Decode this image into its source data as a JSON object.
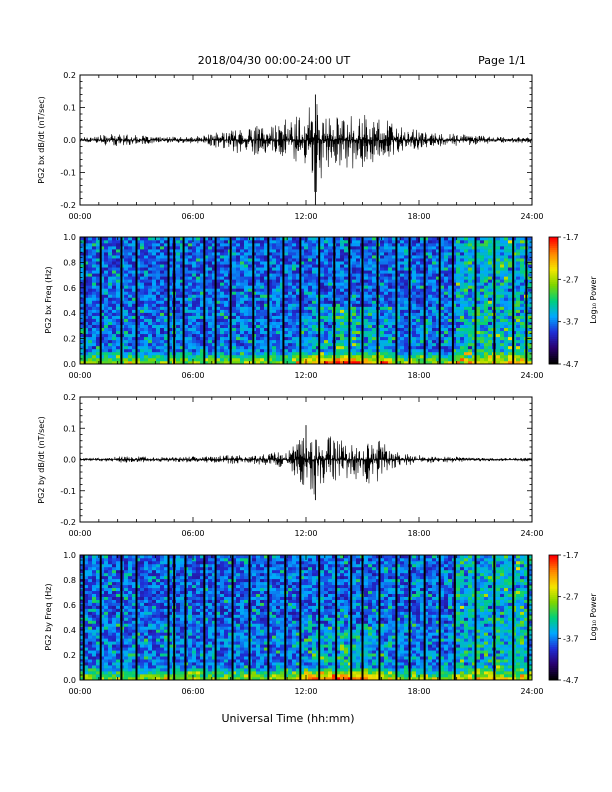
{
  "header": {
    "title": "2018/04/30  00:00-24:00 UT",
    "page": "Page 1/1"
  },
  "xaxis": {
    "label": "Universal Time (hh:mm)",
    "range_hours": [
      0,
      24
    ],
    "tick_hours": [
      0,
      6,
      12,
      18,
      24
    ],
    "tick_labels": [
      "00:00",
      "06:00",
      "12:00",
      "18:00",
      "24:00"
    ]
  },
  "colors": {
    "trace": "#000000",
    "background": "#ffffff",
    "colorbar": [
      "#000000",
      "#2a0070",
      "#1f2fd6",
      "#00a8ff",
      "#00d07a",
      "#7ed600",
      "#f4e600",
      "#ff8a00",
      "#ff0000"
    ]
  },
  "chart_data": [
    {
      "type": "line",
      "ylabel": "PG2 bx dB/dt (nT/sec)",
      "ylim": [
        -0.2,
        0.2
      ],
      "yticks": [
        -0.2,
        -0.1,
        0.0,
        0.1,
        0.2
      ],
      "ytick_labels": [
        "-0.2",
        "-0.1",
        "0.0",
        "0.1",
        "0.2"
      ],
      "x": [
        0,
        1,
        2,
        3,
        4,
        5,
        6,
        7,
        8,
        9,
        10,
        11,
        12,
        12.5,
        13,
        13.5,
        14,
        15,
        16,
        17,
        18,
        19,
        20,
        21,
        22,
        23,
        24
      ],
      "series": [
        {
          "max": [
            0.01,
            0.015,
            0.02,
            0.015,
            0.01,
            0.01,
            0.01,
            0.02,
            0.035,
            0.05,
            0.04,
            0.07,
            0.09,
            0.14,
            0.08,
            0.07,
            0.07,
            0.08,
            0.07,
            0.04,
            0.03,
            0.02,
            0.02,
            0.015,
            0.01,
            0.01,
            0.01
          ],
          "min": [
            -0.01,
            -0.015,
            -0.02,
            -0.015,
            -0.01,
            -0.01,
            -0.01,
            -0.02,
            -0.035,
            -0.05,
            -0.04,
            -0.06,
            -0.08,
            -0.2,
            -0.1,
            -0.08,
            -0.1,
            -0.09,
            -0.07,
            -0.04,
            -0.03,
            -0.02,
            -0.02,
            -0.015,
            -0.01,
            -0.01,
            -0.01
          ]
        }
      ]
    },
    {
      "type": "heatmap",
      "ylabel": "PG2 bx Freq (Hz)",
      "ylim": [
        0,
        1.0
      ],
      "yticks": [
        0.0,
        0.2,
        0.4,
        0.6,
        0.8,
        1.0
      ],
      "ytick_labels": [
        "0.0",
        "0.2",
        "0.4",
        "0.6",
        "0.8",
        "1.0"
      ],
      "colorbar_label": "Log₁₀ Power",
      "colorbar_range": [
        -4.7,
        -1.7
      ],
      "colorbar_ticks": [
        -1.7,
        -2.7,
        -3.7,
        -4.7
      ],
      "colorbar_tick_labels": [
        "-1.7",
        "-2.7",
        "-3.7",
        "-4.7"
      ],
      "data_gap_hours": [
        0.25,
        1.1,
        2.2,
        3.0,
        4.7,
        5.0,
        5.5,
        6.6,
        7.2,
        8.0,
        9.2,
        10.0,
        10.8,
        11.7,
        12.7,
        13.5,
        14.3,
        15.0,
        15.8,
        16.8,
        17.5,
        18.3,
        19.1,
        19.8,
        21.0,
        22.0,
        23.0,
        23.7
      ],
      "activity_hours": [
        11.5,
        16.5
      ],
      "peak_activity_freq_hz": [
        0.0,
        0.1
      ]
    },
    {
      "type": "line",
      "ylabel": "PG2 by dB/dt (nT/sec)",
      "ylim": [
        -0.2,
        0.2
      ],
      "yticks": [
        -0.2,
        -0.1,
        0.0,
        0.1,
        0.2
      ],
      "ytick_labels": [
        "-0.2",
        "-0.1",
        "0.0",
        "0.1",
        "0.2"
      ],
      "x": [
        0,
        1,
        2,
        3,
        4,
        5,
        6,
        7,
        8,
        9,
        10,
        11,
        11.5,
        12,
        12.5,
        13,
        14,
        15,
        15.5,
        16,
        17,
        18,
        19,
        20,
        21,
        22,
        23,
        24
      ],
      "series": [
        {
          "max": [
            0.005,
            0.005,
            0.01,
            0.01,
            0.008,
            0.008,
            0.01,
            0.01,
            0.015,
            0.015,
            0.02,
            0.03,
            0.05,
            0.11,
            0.08,
            0.08,
            0.07,
            0.05,
            0.06,
            0.06,
            0.02,
            0.015,
            0.01,
            0.01,
            0.005,
            0.005,
            0.005,
            0.005
          ],
          "min": [
            -0.005,
            -0.005,
            -0.01,
            -0.01,
            -0.008,
            -0.008,
            -0.01,
            -0.01,
            -0.015,
            -0.015,
            -0.02,
            -0.03,
            -0.06,
            -0.12,
            -0.13,
            -0.09,
            -0.07,
            -0.06,
            -0.1,
            -0.05,
            -0.02,
            -0.015,
            -0.01,
            -0.01,
            -0.005,
            -0.005,
            -0.005,
            -0.005
          ]
        }
      ]
    },
    {
      "type": "heatmap",
      "ylabel": "PG2 by Freq (Hz)",
      "ylim": [
        0,
        1.0
      ],
      "yticks": [
        0.0,
        0.2,
        0.4,
        0.6,
        0.8,
        1.0
      ],
      "ytick_labels": [
        "0.0",
        "0.2",
        "0.4",
        "0.6",
        "0.8",
        "1.0"
      ],
      "colorbar_label": "Log₁₀ Power",
      "colorbar_range": [
        -4.7,
        -1.7
      ],
      "colorbar_ticks": [
        -1.7,
        -2.7,
        -3.7,
        -4.7
      ],
      "colorbar_tick_labels": [
        "-1.7",
        "-2.7",
        "-3.7",
        "-4.7"
      ],
      "data_gap_hours": [
        0.2,
        1.1,
        2.2,
        3.0,
        4.7,
        5.0,
        5.6,
        6.6,
        7.2,
        8.1,
        9.0,
        10.0,
        10.9,
        11.7,
        12.7,
        13.6,
        14.4,
        15.0,
        15.9,
        16.8,
        17.5,
        18.3,
        19.1,
        19.9,
        21.0,
        22.0,
        23.0,
        23.8
      ],
      "activity_hours": [
        11.5,
        16.5
      ],
      "peak_activity_freq_hz": [
        0.0,
        0.1
      ]
    }
  ]
}
